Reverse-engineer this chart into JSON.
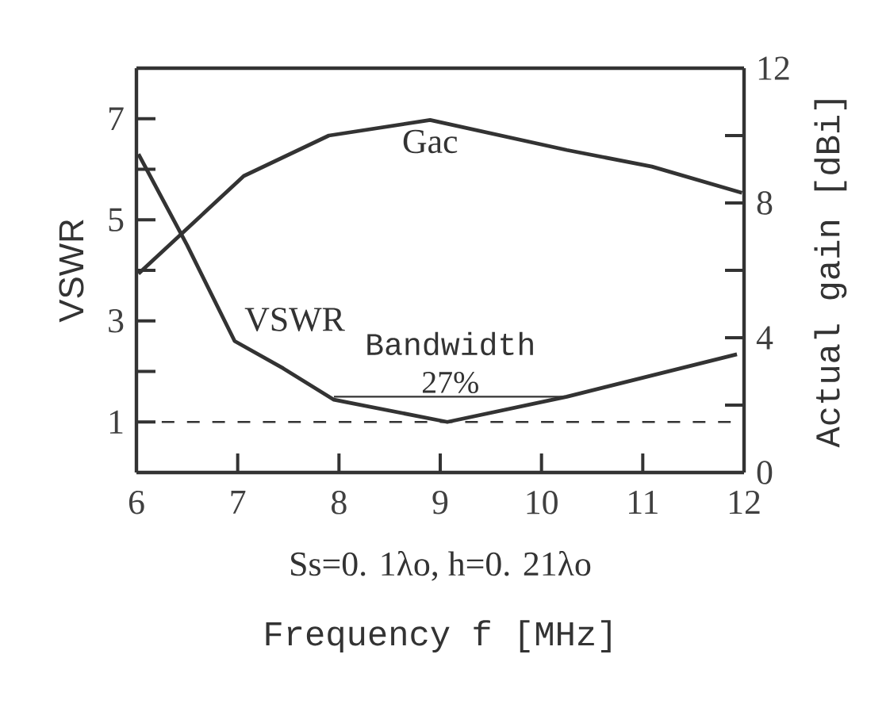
{
  "chart_data": {
    "type": "line",
    "xlabel": "Frequency f [MHz]",
    "ylabel": "VSWR",
    "y2label": "Actual gain [dBi]",
    "annotations": [
      "Ss=0. 1λo, h=0. 21λo",
      "Bandwidth",
      "27%"
    ],
    "xlim": [
      6,
      12
    ],
    "xticks": [
      6,
      7,
      8,
      9,
      10,
      11,
      12
    ],
    "ylim": [
      0,
      8
    ],
    "yticks": [
      1,
      {
        "value": 2,
        "label": null
      },
      3,
      {
        "value": 4,
        "label": null
      },
      5,
      {
        "value": 6,
        "label": null
      },
      7
    ],
    "y2lim": [
      0,
      12
    ],
    "y2ticks": [
      0,
      {
        "value": 2,
        "label": null
      },
      4,
      {
        "value": 6,
        "label": null
      },
      8,
      {
        "value": 10,
        "label": null
      },
      12
    ],
    "series": [
      {
        "name": "VSWR",
        "color": "#333333",
        "x": [
          6.02,
          6.5,
          6.97,
          7.45,
          7.95,
          9.07,
          10.25,
          11.93
        ],
        "values": [
          6.3,
          4.5,
          2.6,
          2.06,
          1.44,
          1.0,
          1.5,
          2.34
        ]
      },
      {
        "name": "Gac",
        "color": "#333333",
        "axis": "y2",
        "x": [
          6.02,
          7.06,
          7.9,
          8.9,
          10.25,
          11.09,
          11.98
        ],
        "values": [
          5.9,
          8.8,
          10.0,
          10.46,
          9.57,
          9.08,
          8.3
        ]
      },
      {
        "color": "#333333",
        "x": [
          7.95,
          10.25
        ],
        "values": [
          1.5,
          1.5
        ]
      }
    ],
    "ref_lines": [
      {
        "axis": "y",
        "value": 1,
        "line_style": "dashed",
        "color": "#333333"
      }
    ]
  }
}
